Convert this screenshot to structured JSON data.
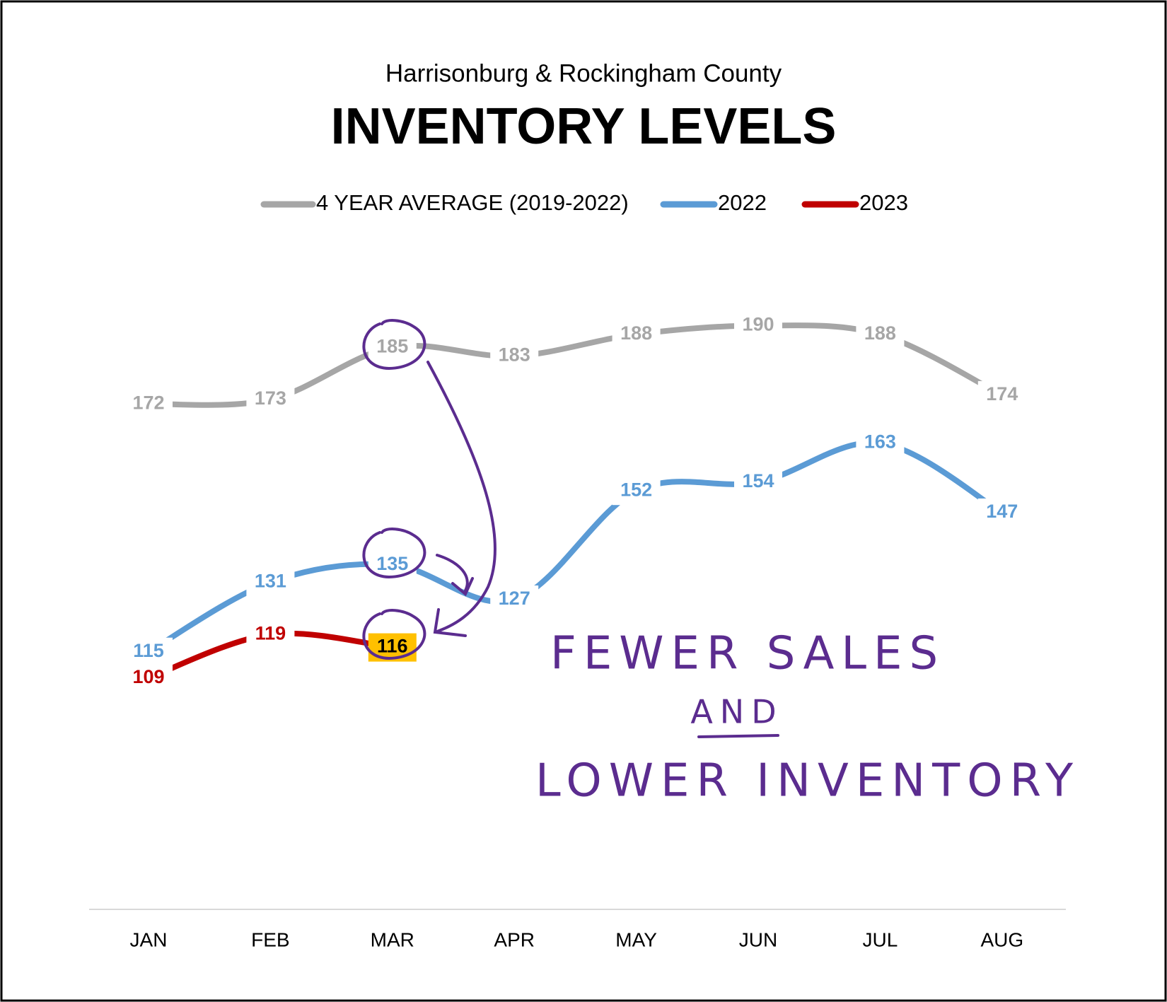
{
  "chart_data": {
    "type": "line",
    "subtitle": "Harrisonburg & Rockingham County",
    "title": "INVENTORY LEVELS",
    "categories": [
      "JAN",
      "FEB",
      "MAR",
      "APR",
      "MAY",
      "JUN",
      "JUL",
      "AUG"
    ],
    "series": [
      {
        "name": "4 YEAR AVERAGE (2019-2022)",
        "color": "#a6a6a6",
        "values": [
          172,
          173,
          185,
          183,
          188,
          190,
          188,
          174
        ]
      },
      {
        "name": "2022",
        "color": "#5b9bd5",
        "values": [
          115,
          131,
          135,
          127,
          152,
          154,
          163,
          147
        ]
      },
      {
        "name": "2023",
        "color": "#c00000",
        "values": [
          109,
          119,
          116,
          null,
          null,
          null,
          null,
          null
        ]
      }
    ],
    "ylim": [
      60,
      200
    ],
    "highlight": {
      "series": 2,
      "index": 2,
      "color": "#ffc000"
    },
    "annotations": [
      "FEWER SALES",
      "AND",
      "LOWER INVENTORY"
    ]
  }
}
